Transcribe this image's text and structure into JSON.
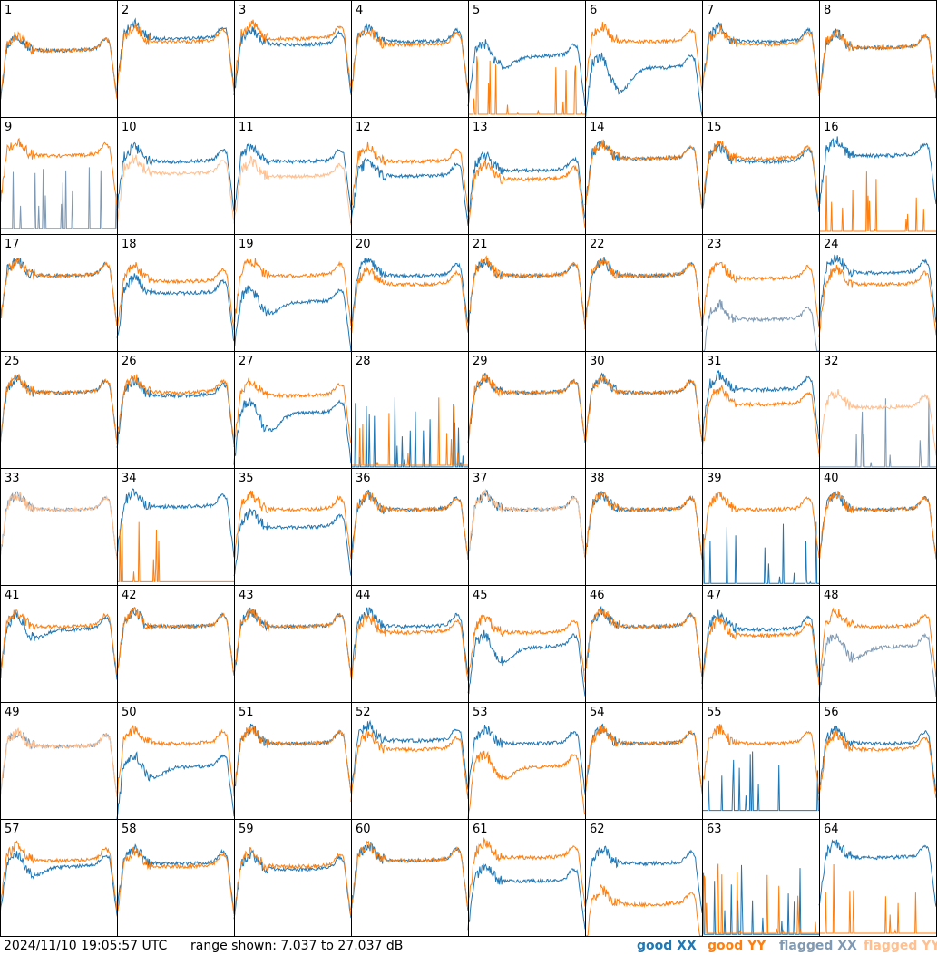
{
  "footer": {
    "timestamp": "2024/11/10 19:05:57 UTC",
    "range": "range shown: 7.037 to 27.037 dB",
    "legend": [
      {
        "label": "good XX",
        "color": "#1f77b4"
      },
      {
        "label": "good YY",
        "color": "#ff7f0e"
      },
      {
        "label": "flagged XX",
        "color": "#7f99b3"
      },
      {
        "label": "flagged YY",
        "color": "#ffbf8f"
      }
    ]
  },
  "chart_data": {
    "type": "line",
    "grid": "8x8 small multiples",
    "y_unit": "dB",
    "ylim": [
      7.037,
      27.037
    ],
    "panel_labels": [
      "1",
      "2",
      "3",
      "4",
      "5",
      "6",
      "7",
      "8",
      "9",
      "10",
      "11",
      "12",
      "13",
      "14",
      "15",
      "16",
      "17",
      "18",
      "19",
      "20",
      "21",
      "22",
      "23",
      "24",
      "25",
      "26",
      "27",
      "28",
      "29",
      "30",
      "31",
      "32",
      "33",
      "34",
      "35",
      "36",
      "37",
      "38",
      "39",
      "40",
      "41",
      "42",
      "43",
      "44",
      "45",
      "46",
      "47",
      "48",
      "49",
      "50",
      "51",
      "52",
      "53",
      "54",
      "55",
      "56",
      "57",
      "58",
      "59",
      "60",
      "61",
      "62",
      "63",
      "64"
    ],
    "series_names": [
      "good XX",
      "good YY",
      "flagged XX",
      "flagged YY"
    ],
    "colors": {
      "good XX": "#1f77b4",
      "good YY": "#ff7f0e",
      "flagged XX": "#7f99b3",
      "flagged YY": "#ffbf8f"
    },
    "panels": [
      {
        "label": "1",
        "xx": "good",
        "yy": "good",
        "xx_level": 19,
        "yy_level": 19,
        "xx_dip": 0,
        "yy_dip": 0
      },
      {
        "label": "2",
        "xx": "good",
        "yy": "good",
        "xx_level": 21,
        "yy_level": 20.5,
        "xx_dip": 0,
        "yy_dip": 0
      },
      {
        "label": "3",
        "xx": "good",
        "yy": "good",
        "xx_level": 20,
        "yy_level": 21,
        "xx_dip": 0,
        "yy_dip": 0
      },
      {
        "label": "4",
        "xx": "good",
        "yy": "good",
        "xx_level": 20.5,
        "yy_level": 20,
        "xx_dip": 0,
        "yy_dip": 0
      },
      {
        "label": "5",
        "xx": "good",
        "yy": "good",
        "xx_level": 18,
        "yy_level": 7.5,
        "xx_dip": 2,
        "yy_dip": 0
      },
      {
        "label": "6",
        "xx": "good",
        "yy": "good",
        "xx_level": 16,
        "yy_level": 20.5,
        "xx_dip": 4,
        "yy_dip": 0
      },
      {
        "label": "7",
        "xx": "good",
        "yy": "good",
        "xx_level": 20.5,
        "yy_level": 20,
        "xx_dip": 0,
        "yy_dip": 0
      },
      {
        "label": "8",
        "xx": "good",
        "yy": "good",
        "xx_level": 19.5,
        "yy_level": 19.5,
        "xx_dip": 0,
        "yy_dip": 0
      },
      {
        "label": "9",
        "xx": "flagged",
        "yy": "good",
        "xx_level": 8,
        "yy_level": 21,
        "xx_dip": 0,
        "yy_dip": 0
      },
      {
        "label": "10",
        "xx": "good",
        "yy": "flagged",
        "xx_level": 20,
        "yy_level": 18,
        "xx_dip": 0,
        "yy_dip": 0
      },
      {
        "label": "11",
        "xx": "good",
        "yy": "flagged",
        "xx_level": 20,
        "yy_level": 17.5,
        "xx_dip": 0,
        "yy_dip": 0
      },
      {
        "label": "12",
        "xx": "good",
        "yy": "good",
        "xx_level": 17.5,
        "yy_level": 20,
        "xx_dip": 0,
        "yy_dip": 0
      },
      {
        "label": "13",
        "xx": "good",
        "yy": "good",
        "xx_level": 18.5,
        "yy_level": 17,
        "xx_dip": 0,
        "yy_dip": 0
      },
      {
        "label": "14",
        "xx": "good",
        "yy": "good",
        "xx_level": 20.5,
        "yy_level": 20.5,
        "xx_dip": 0,
        "yy_dip": 0
      },
      {
        "label": "15",
        "xx": "good",
        "yy": "good",
        "xx_level": 20,
        "yy_level": 20.5,
        "xx_dip": 0,
        "yy_dip": 0
      },
      {
        "label": "16",
        "xx": "good",
        "yy": "good",
        "xx_level": 21,
        "yy_level": 7.5,
        "xx_dip": 0,
        "yy_dip": 0
      },
      {
        "label": "17",
        "xx": "good",
        "yy": "good",
        "xx_level": 20.5,
        "yy_level": 20.5,
        "xx_dip": 0,
        "yy_dip": 0
      },
      {
        "label": "18",
        "xx": "good",
        "yy": "good",
        "xx_level": 17.5,
        "yy_level": 19.5,
        "xx_dip": 0,
        "yy_dip": 0
      },
      {
        "label": "19",
        "xx": "good",
        "yy": "good",
        "xx_level": 16,
        "yy_level": 20.5,
        "xx_dip": 2,
        "yy_dip": 0
      },
      {
        "label": "20",
        "xx": "good",
        "yy": "good",
        "xx_level": 20.5,
        "yy_level": 19,
        "xx_dip": 0,
        "yy_dip": 0
      },
      {
        "label": "21",
        "xx": "good",
        "yy": "good",
        "xx_level": 20.5,
        "yy_level": 20.5,
        "xx_dip": 0,
        "yy_dip": 0
      },
      {
        "label": "22",
        "xx": "good",
        "yy": "good",
        "xx_level": 20.5,
        "yy_level": 20.5,
        "xx_dip": 0,
        "yy_dip": 0
      },
      {
        "label": "23",
        "xx": "flagged",
        "yy": "good",
        "xx_level": 13,
        "yy_level": 20,
        "xx_dip": 0,
        "yy_dip": 0
      },
      {
        "label": "24",
        "xx": "good",
        "yy": "good",
        "xx_level": 21,
        "yy_level": 19,
        "xx_dip": 0,
        "yy_dip": 0
      },
      {
        "label": "25",
        "xx": "good",
        "yy": "good",
        "xx_level": 20.5,
        "yy_level": 20.5,
        "xx_dip": 0,
        "yy_dip": 0
      },
      {
        "label": "26",
        "xx": "good",
        "yy": "good",
        "xx_level": 20,
        "yy_level": 20.5,
        "xx_dip": 0,
        "yy_dip": 0
      },
      {
        "label": "27",
        "xx": "good",
        "yy": "good",
        "xx_level": 17,
        "yy_level": 20,
        "xx_dip": 3,
        "yy_dip": 0
      },
      {
        "label": "28",
        "xx": "good",
        "yy": "good",
        "xx_level": 7.2,
        "yy_level": 7.5,
        "xx_dip": 0,
        "yy_dip": 0
      },
      {
        "label": "29",
        "xx": "good",
        "yy": "good",
        "xx_level": 20.5,
        "yy_level": 20.5,
        "xx_dip": 0,
        "yy_dip": 0
      },
      {
        "label": "30",
        "xx": "good",
        "yy": "good",
        "xx_level": 20.5,
        "yy_level": 20.5,
        "xx_dip": 0,
        "yy_dip": 0
      },
      {
        "label": "31",
        "xx": "good",
        "yy": "good",
        "xx_level": 21,
        "yy_level": 18.5,
        "xx_dip": 0,
        "yy_dip": 0
      },
      {
        "label": "32",
        "xx": "flagged",
        "yy": "flagged",
        "xx_level": 7.2,
        "yy_level": 18,
        "xx_dip": 0,
        "yy_dip": 0
      },
      {
        "label": "33",
        "xx": "flagged",
        "yy": "flagged",
        "xx_level": 20.5,
        "yy_level": 20.5,
        "xx_dip": 0,
        "yy_dip": 0
      },
      {
        "label": "34",
        "xx": "good",
        "yy": "good",
        "xx_level": 21,
        "yy_level": 7.6,
        "xx_dip": 0,
        "yy_dip": 0
      },
      {
        "label": "35",
        "xx": "good",
        "yy": "good",
        "xx_level": 17.5,
        "yy_level": 20.5,
        "xx_dip": 0,
        "yy_dip": 0
      },
      {
        "label": "36",
        "xx": "good",
        "yy": "good",
        "xx_level": 20.5,
        "yy_level": 20.5,
        "xx_dip": 0,
        "yy_dip": 0
      },
      {
        "label": "37",
        "xx": "good",
        "yy": "flagged",
        "xx_level": 20.5,
        "yy_level": 20.5,
        "xx_dip": 0,
        "yy_dip": 0
      },
      {
        "label": "38",
        "xx": "good",
        "yy": "good",
        "xx_level": 20.5,
        "yy_level": 20.5,
        "xx_dip": 0,
        "yy_dip": 0
      },
      {
        "label": "39",
        "xx": "good",
        "yy": "good",
        "xx_level": 7.3,
        "yy_level": 20.5,
        "xx_dip": 0,
        "yy_dip": 0
      },
      {
        "label": "40",
        "xx": "good",
        "yy": "good",
        "xx_level": 20.5,
        "yy_level": 20.5,
        "xx_dip": 0,
        "yy_dip": 0
      },
      {
        "label": "41",
        "xx": "good",
        "yy": "good",
        "xx_level": 20,
        "yy_level": 20.5,
        "xx_dip": 1.5,
        "yy_dip": 0
      },
      {
        "label": "42",
        "xx": "good",
        "yy": "good",
        "xx_level": 20.5,
        "yy_level": 20.5,
        "xx_dip": 0,
        "yy_dip": 0
      },
      {
        "label": "43",
        "xx": "good",
        "yy": "good",
        "xx_level": 20.5,
        "yy_level": 20.5,
        "xx_dip": 0,
        "yy_dip": 0
      },
      {
        "label": "44",
        "xx": "good",
        "yy": "good",
        "xx_level": 20.5,
        "yy_level": 19.5,
        "xx_dip": 0,
        "yy_dip": 0
      },
      {
        "label": "45",
        "xx": "good",
        "yy": "good",
        "xx_level": 17,
        "yy_level": 19.5,
        "xx_dip": 2.5,
        "yy_dip": 0
      },
      {
        "label": "46",
        "xx": "good",
        "yy": "good",
        "xx_level": 20.5,
        "yy_level": 20.5,
        "xx_dip": 0,
        "yy_dip": 0
      },
      {
        "label": "47",
        "xx": "good",
        "yy": "good",
        "xx_level": 20,
        "yy_level": 19,
        "xx_dip": 0,
        "yy_dip": 0
      },
      {
        "label": "48",
        "xx": "flagged",
        "yy": "good",
        "xx_level": 17,
        "yy_level": 20.5,
        "xx_dip": 2,
        "yy_dip": 0
      },
      {
        "label": "49",
        "xx": "flagged",
        "yy": "flagged",
        "xx_level": 20,
        "yy_level": 20,
        "xx_dip": 0,
        "yy_dip": 0
      },
      {
        "label": "50",
        "xx": "good",
        "yy": "good",
        "xx_level": 16.5,
        "yy_level": 20.5,
        "xx_dip": 2,
        "yy_dip": 0
      },
      {
        "label": "51",
        "xx": "good",
        "yy": "good",
        "xx_level": 20.5,
        "yy_level": 20.5,
        "xx_dip": 0,
        "yy_dip": 0
      },
      {
        "label": "52",
        "xx": "good",
        "yy": "good",
        "xx_level": 21,
        "yy_level": 19.5,
        "xx_dip": 0,
        "yy_dip": 0
      },
      {
        "label": "53",
        "xx": "good",
        "yy": "good",
        "xx_level": 20.5,
        "yy_level": 16.5,
        "xx_dip": 0,
        "yy_dip": 2
      },
      {
        "label": "54",
        "xx": "good",
        "yy": "good",
        "xx_level": 20.5,
        "yy_level": 20.5,
        "xx_dip": 0,
        "yy_dip": 0
      },
      {
        "label": "55",
        "xx": "good",
        "yy": "good",
        "xx_level": 8.5,
        "yy_level": 20.5,
        "xx_dip": 0,
        "yy_dip": 0
      },
      {
        "label": "56",
        "xx": "good",
        "yy": "good",
        "xx_level": 20.5,
        "yy_level": 19.5,
        "xx_dip": 0,
        "yy_dip": 0
      },
      {
        "label": "57",
        "xx": "good",
        "yy": "good",
        "xx_level": 19.5,
        "yy_level": 20.5,
        "xx_dip": 1.5,
        "yy_dip": 0
      },
      {
        "label": "58",
        "xx": "good",
        "yy": "good",
        "xx_level": 20,
        "yy_level": 19.5,
        "xx_dip": 0,
        "yy_dip": 0
      },
      {
        "label": "59",
        "xx": "good",
        "yy": "good",
        "xx_level": 19,
        "yy_level": 19.5,
        "xx_dip": 0,
        "yy_dip": 0
      },
      {
        "label": "60",
        "xx": "good",
        "yy": "good",
        "xx_level": 20.5,
        "yy_level": 20.5,
        "xx_dip": 0,
        "yy_dip": 0
      },
      {
        "label": "61",
        "xx": "good",
        "yy": "good",
        "xx_level": 17,
        "yy_level": 21,
        "xx_dip": 0,
        "yy_dip": 0
      },
      {
        "label": "62",
        "xx": "good",
        "yy": "good",
        "xx_level": 20,
        "yy_level": 13,
        "xx_dip": 0,
        "yy_dip": 0
      },
      {
        "label": "63",
        "xx": "good",
        "yy": "good",
        "xx_level": 7.3,
        "yy_level": 7.5,
        "xx_dip": 0,
        "yy_dip": 0
      },
      {
        "label": "64",
        "xx": "good",
        "yy": "good",
        "xx_level": 21,
        "yy_level": 7.5,
        "xx_dip": 0,
        "yy_dip": 0
      }
    ]
  }
}
